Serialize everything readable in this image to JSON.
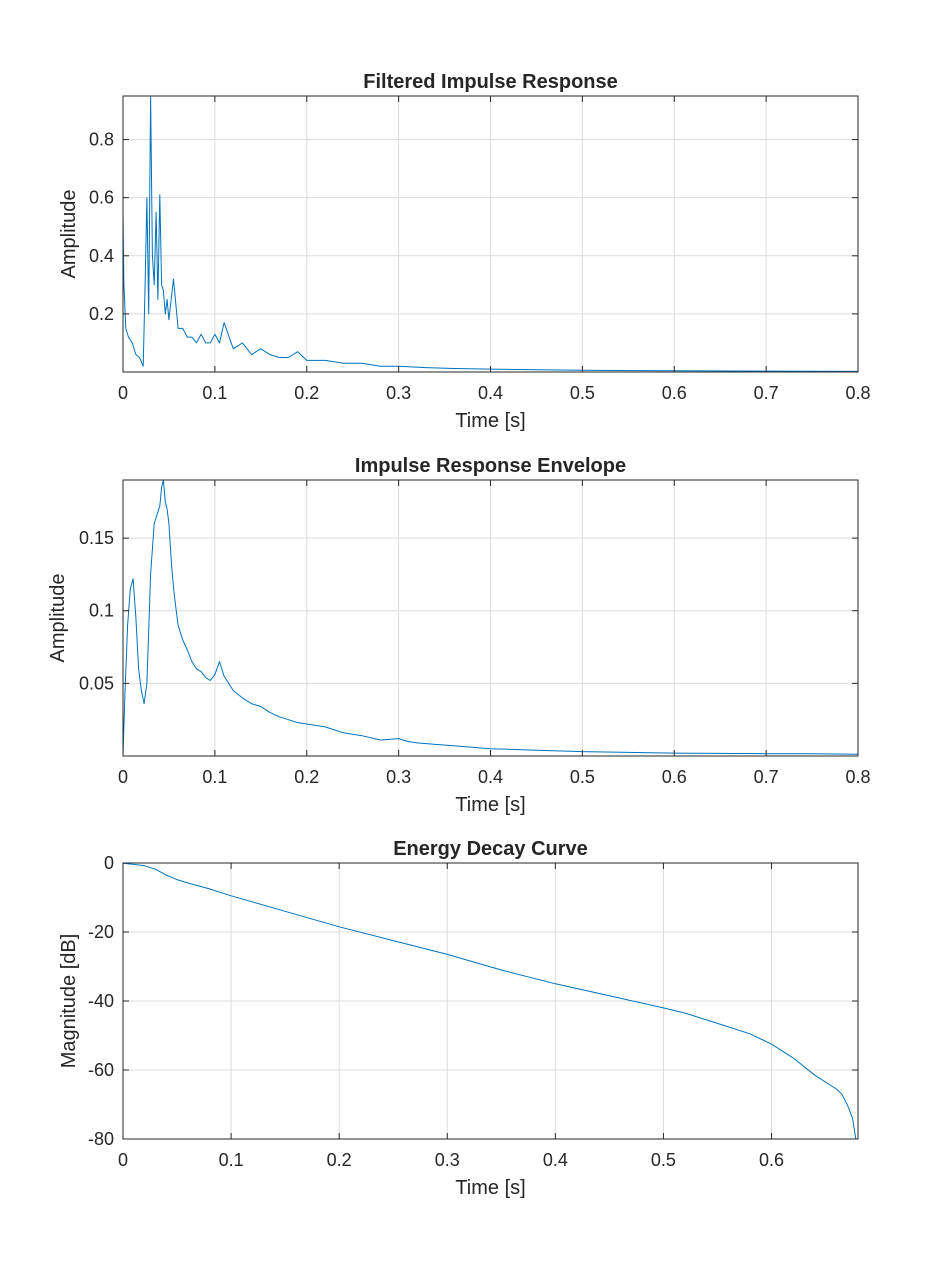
{
  "chart_data": [
    {
      "type": "line",
      "title": "Filtered Impulse Response",
      "xlabel": "Time [s]",
      "ylabel": "Amplitude",
      "xlim": [
        0,
        0.8
      ],
      "ylim": [
        0,
        0.95
      ],
      "xticks": [
        0,
        0.1,
        0.2,
        0.3,
        0.4,
        0.5,
        0.6,
        0.7,
        0.8
      ],
      "xtick_labels": [
        "0",
        "0.1",
        "0.2",
        "0.3",
        "0.4",
        "0.5",
        "0.6",
        "0.7",
        "0.8"
      ],
      "yticks": [
        0.2,
        0.4,
        0.6,
        0.8
      ],
      "ytick_labels": [
        "0.2",
        "0.4",
        "0.6",
        "0.8"
      ],
      "grid": true,
      "line_color": "#0072bd",
      "series": [
        {
          "x": [
            0,
            0.001,
            0.003,
            0.006,
            0.01,
            0.014,
            0.018,
            0.022,
            0.024,
            0.026,
            0.028,
            0.03,
            0.032,
            0.034,
            0.036,
            0.038,
            0.04,
            0.042,
            0.044,
            0.046,
            0.048,
            0.05,
            0.055,
            0.06,
            0.065,
            0.07,
            0.075,
            0.08,
            0.085,
            0.09,
            0.095,
            0.1,
            0.105,
            0.11,
            0.12,
            0.13,
            0.14,
            0.15,
            0.16,
            0.17,
            0.18,
            0.19,
            0.2,
            0.22,
            0.24,
            0.26,
            0.28,
            0.3,
            0.33,
            0.36,
            0.4,
            0.45,
            0.5,
            0.6,
            0.7,
            0.8
          ],
          "y": [
            0.54,
            0.3,
            0.15,
            0.12,
            0.1,
            0.06,
            0.05,
            0.02,
            0.3,
            0.6,
            0.2,
            0.95,
            0.4,
            0.3,
            0.55,
            0.25,
            0.61,
            0.3,
            0.28,
            0.2,
            0.25,
            0.18,
            0.32,
            0.15,
            0.15,
            0.12,
            0.12,
            0.1,
            0.13,
            0.1,
            0.1,
            0.13,
            0.1,
            0.17,
            0.08,
            0.1,
            0.06,
            0.08,
            0.06,
            0.05,
            0.05,
            0.07,
            0.04,
            0.04,
            0.03,
            0.03,
            0.02,
            0.02,
            0.015,
            0.012,
            0.01,
            0.008,
            0.006,
            0.004,
            0.003,
            0.002
          ]
        }
      ]
    },
    {
      "type": "line",
      "title": "Impulse Response Envelope",
      "xlabel": "Time [s]",
      "ylabel": "Amplitude",
      "xlim": [
        0,
        0.8
      ],
      "ylim": [
        0,
        0.19
      ],
      "xticks": [
        0,
        0.1,
        0.2,
        0.3,
        0.4,
        0.5,
        0.6,
        0.7,
        0.8
      ],
      "xtick_labels": [
        "0",
        "0.1",
        "0.2",
        "0.3",
        "0.4",
        "0.5",
        "0.6",
        "0.7",
        "0.8"
      ],
      "yticks": [
        0.05,
        0.1,
        0.15
      ],
      "ytick_labels": [
        "0.05",
        "0.1",
        "0.15"
      ],
      "grid": true,
      "line_color": "#0072bd",
      "series": [
        {
          "x": [
            0,
            0.002,
            0.005,
            0.008,
            0.011,
            0.014,
            0.017,
            0.02,
            0.023,
            0.026,
            0.03,
            0.034,
            0.038,
            0.04,
            0.042,
            0.044,
            0.046,
            0.048,
            0.05,
            0.053,
            0.056,
            0.06,
            0.065,
            0.07,
            0.075,
            0.08,
            0.085,
            0.09,
            0.095,
            0.1,
            0.105,
            0.11,
            0.115,
            0.12,
            0.13,
            0.14,
            0.15,
            0.16,
            0.17,
            0.18,
            0.19,
            0.2,
            0.22,
            0.24,
            0.26,
            0.28,
            0.3,
            0.31,
            0.32,
            0.34,
            0.36,
            0.38,
            0.4,
            0.45,
            0.5,
            0.55,
            0.6,
            0.65,
            0.7,
            0.75,
            0.8
          ],
          "y": [
            0.0,
            0.04,
            0.09,
            0.115,
            0.122,
            0.095,
            0.06,
            0.045,
            0.036,
            0.05,
            0.125,
            0.16,
            0.168,
            0.172,
            0.185,
            0.19,
            0.175,
            0.17,
            0.16,
            0.13,
            0.11,
            0.09,
            0.08,
            0.073,
            0.065,
            0.06,
            0.058,
            0.054,
            0.052,
            0.056,
            0.065,
            0.055,
            0.05,
            0.045,
            0.04,
            0.036,
            0.034,
            0.03,
            0.027,
            0.025,
            0.023,
            0.022,
            0.02,
            0.016,
            0.014,
            0.011,
            0.012,
            0.01,
            0.009,
            0.008,
            0.007,
            0.006,
            0.005,
            0.004,
            0.003,
            0.0025,
            0.002,
            0.0018,
            0.0016,
            0.0015,
            0.0012
          ]
        }
      ]
    },
    {
      "type": "line",
      "title": "Energy Decay Curve",
      "xlabel": "Time [s]",
      "ylabel": "Magnitude [dB]",
      "xlim": [
        0,
        0.68
      ],
      "ylim": [
        -80,
        0
      ],
      "xticks": [
        0,
        0.1,
        0.2,
        0.3,
        0.4,
        0.5,
        0.6
      ],
      "xtick_labels": [
        "0",
        "0.1",
        "0.2",
        "0.3",
        "0.4",
        "0.5",
        "0.6"
      ],
      "yticks": [
        0,
        -20,
        -40,
        -60,
        -80
      ],
      "ytick_labels": [
        "0",
        "-20",
        "-40",
        "-60",
        "-80"
      ],
      "grid": true,
      "line_color": "#0072bd",
      "series": [
        {
          "x": [
            0,
            0.01,
            0.02,
            0.03,
            0.04,
            0.05,
            0.06,
            0.08,
            0.1,
            0.15,
            0.2,
            0.25,
            0.3,
            0.35,
            0.4,
            0.45,
            0.5,
            0.52,
            0.55,
            0.58,
            0.6,
            0.62,
            0.64,
            0.66,
            0.665,
            0.67,
            0.675,
            0.678
          ],
          "y": [
            -0.1,
            -0.4,
            -0.8,
            -1.8,
            -3.5,
            -4.8,
            -5.8,
            -7.5,
            -9.5,
            -14,
            -18.5,
            -22.5,
            -26.5,
            -31,
            -35,
            -38.5,
            -42,
            -43.5,
            -46.5,
            -49.5,
            -52.5,
            -56.5,
            -61.5,
            -65.5,
            -67,
            -70,
            -74,
            -80
          ]
        }
      ]
    }
  ]
}
